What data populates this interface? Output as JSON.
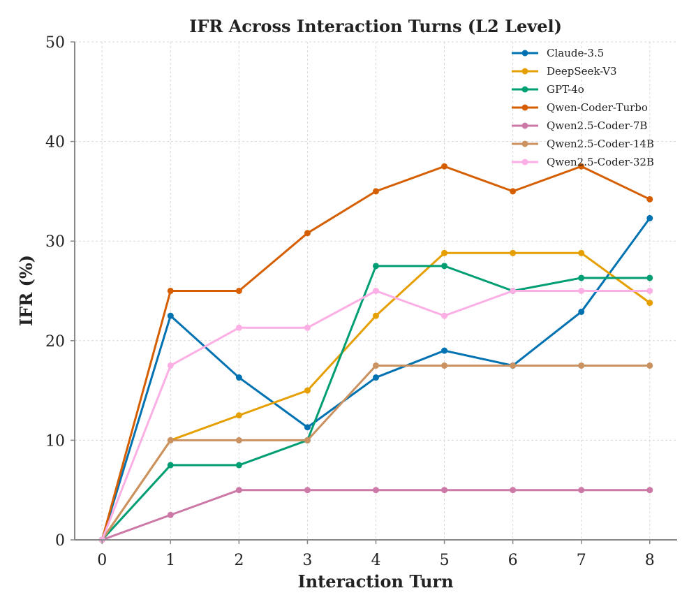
{
  "chart_data": {
    "type": "line",
    "title": "IFR Across Interaction Turns (L2 Level)",
    "xlabel": "Interaction Turn",
    "ylabel": "IFR (%)",
    "x": [
      0,
      1,
      2,
      3,
      4,
      5,
      6,
      7,
      8
    ],
    "xlim": [
      -0.4,
      8.4
    ],
    "ylim": [
      0,
      50
    ],
    "yticks": [
      0,
      10,
      20,
      30,
      40,
      50
    ],
    "grid": true,
    "legend_position": "top-right",
    "series": [
      {
        "name": "Claude-3.5",
        "color": "#0072b2",
        "values": [
          0,
          22.5,
          16.3,
          11.3,
          16.3,
          19.0,
          17.5,
          22.9,
          32.3
        ]
      },
      {
        "name": "DeepSeek-V3",
        "color": "#e69f00",
        "values": [
          0,
          10.0,
          12.5,
          15.0,
          22.5,
          28.8,
          28.8,
          28.8,
          23.8
        ]
      },
      {
        "name": "GPT-4o",
        "color": "#009e73",
        "values": [
          0,
          7.5,
          7.5,
          10.0,
          27.5,
          27.5,
          25.0,
          26.3,
          26.3
        ]
      },
      {
        "name": "Qwen-Coder-Turbo",
        "color": "#d55e00",
        "values": [
          0,
          25.0,
          25.0,
          30.8,
          35.0,
          37.5,
          35.0,
          37.5,
          34.2
        ]
      },
      {
        "name": "Qwen2.5-Coder-7B",
        "color": "#cc79a7",
        "values": [
          0,
          2.5,
          5.0,
          5.0,
          5.0,
          5.0,
          5.0,
          5.0,
          5.0
        ]
      },
      {
        "name": "Qwen2.5-Coder-14B",
        "color": "#ca9161",
        "values": [
          0,
          10.0,
          10.0,
          10.0,
          17.5,
          17.5,
          17.5,
          17.5,
          17.5
        ]
      },
      {
        "name": "Qwen2.5-Coder-32B",
        "color": "#fbafe4",
        "values": [
          0,
          17.5,
          21.3,
          21.3,
          25.0,
          22.5,
          25.0,
          25.0,
          25.0
        ]
      }
    ]
  }
}
